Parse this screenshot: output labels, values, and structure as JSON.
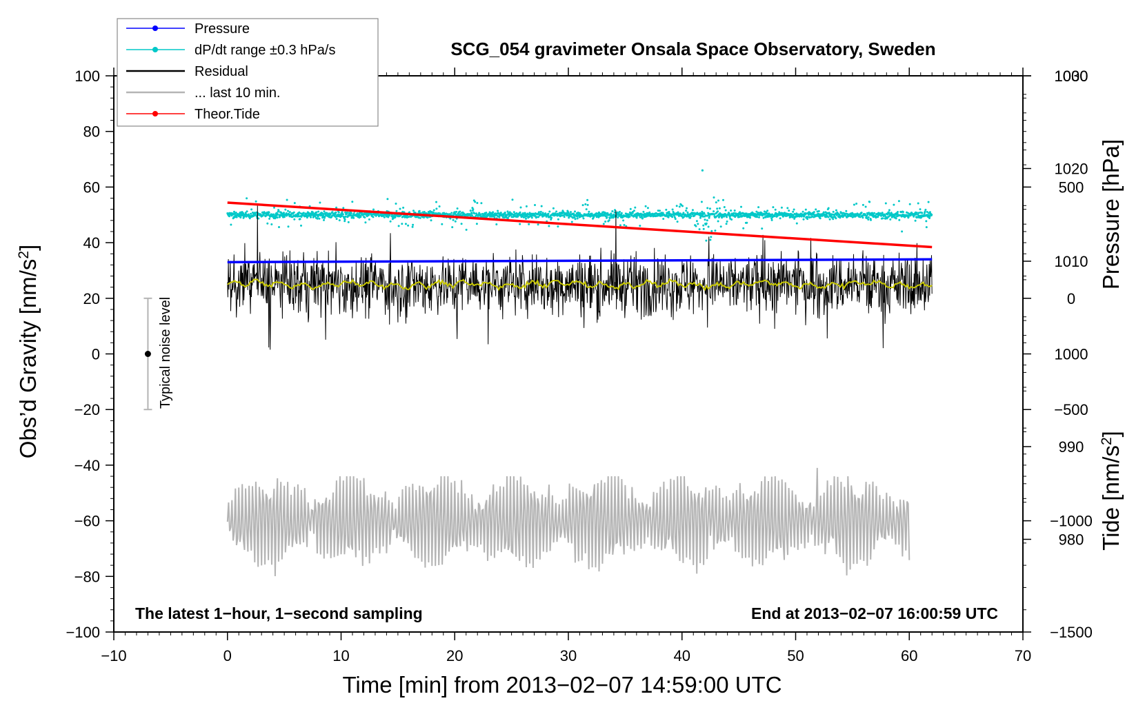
{
  "chart_data": {
    "type": "line",
    "title": "SCG_054 gravimeter Onsala Space Observatory, Sweden",
    "xlabel": "Time [min] from 2013−02−07 14:59:00 UTC",
    "ylabel_left": "Obs’d Gravity [nm/s²]",
    "ylabel_pressure": "Pressure [hPa]",
    "ylabel_tide": "Tide [nm/s²]",
    "xlim": [
      -10,
      70
    ],
    "ylim": [
      -100,
      100
    ],
    "pressure_lim": [
      970,
      1030
    ],
    "tide_lim": [
      -1500,
      1000
    ],
    "x_ticks": [
      "−10",
      "0",
      "10",
      "20",
      "30",
      "40",
      "50",
      "60",
      "70"
    ],
    "y_ticks": [
      "−100",
      "−80",
      "−60",
      "−40",
      "−20",
      "0",
      "20",
      "40",
      "60",
      "80",
      "100"
    ],
    "pressure_ticks": [
      "980",
      "990",
      "1000",
      "1010",
      "1020",
      "1030"
    ],
    "tide_ticks": [
      "−1500",
      "−1000",
      "−500",
      "0",
      "500",
      "1000"
    ],
    "note_left": "The latest 1−hour, 1−second sampling",
    "note_right": "End at 2013−02−07 16:00:59 UTC",
    "noise_label": "Typical noise level",
    "noise_bar": {
      "x": -7,
      "center": 0,
      "half_range": 20
    },
    "legend": [
      {
        "label": "Pressure",
        "color": "#0000ff",
        "style": "line-dot"
      },
      {
        "label": "dP/dt range ±0.3 hPa/s",
        "color": "#00c8c8",
        "style": "line-dot"
      },
      {
        "label": "Residual",
        "color": "#000000",
        "style": "line"
      },
      {
        "label": "... last 10 min.",
        "color": "#b4b4b4",
        "style": "line"
      },
      {
        "label": "Theor.Tide",
        "color": "#ff0000",
        "style": "line-dot"
      }
    ],
    "series": [
      {
        "name": "Pressure",
        "axis": "pressure",
        "color": "#0000ff",
        "x": [
          0,
          62
        ],
        "values": [
          1009.9,
          1010.2
        ]
      },
      {
        "name": "Theor.Tide",
        "axis": "tide",
        "color": "#ff0000",
        "x": [
          0,
          62
        ],
        "values": [
          430,
          230
        ]
      },
      {
        "name": "dP/dt range",
        "axis": "gravity",
        "color": "#00c8c8",
        "x_range": [
          0,
          62
        ],
        "level": 50
      },
      {
        "name": "Residual",
        "axis": "gravity",
        "color": "#000000",
        "x_range": [
          0,
          62
        ],
        "level": 25,
        "typical_range": [
          5,
          45
        ]
      },
      {
        "name": "Residual smoothed",
        "axis": "gravity",
        "color": "#c8c800",
        "x_range": [
          0,
          62
        ],
        "level": 25
      },
      {
        "name": "... last 10 min.",
        "axis": "gravity",
        "color": "#b4b4b4",
        "x_range": [
          0,
          60
        ],
        "level": -60,
        "typical_range": [
          -80,
          -45
        ]
      }
    ]
  }
}
